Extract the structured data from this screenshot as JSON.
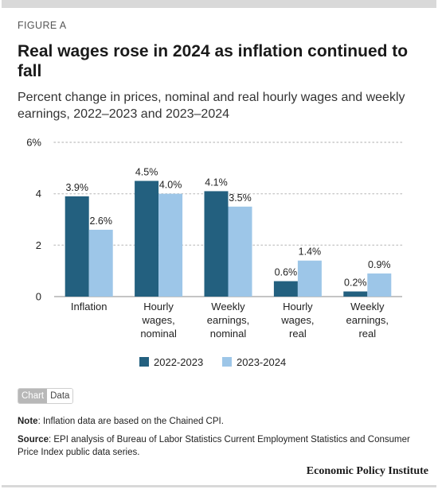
{
  "figure_label": "FIGURE A",
  "title": "Real wages rose in 2024 as inflation continued to fall",
  "subtitle": "Percent change in prices, nominal and real hourly wages and weekly earnings, 2022–2023 and 2023–2024",
  "toggle": {
    "chart_label": "Chart",
    "data_label": "Data",
    "active": "Chart"
  },
  "note_label": "Note",
  "note_text": ": Inflation data are based on the Chained CPI.",
  "source_label": "Source",
  "source_text": ": EPI analysis of Bureau of Labor Statistics Current Employment Statistics and Consumer Price Index public data series.",
  "brand": "Economic Policy Institute",
  "chart_data": {
    "type": "bar",
    "categories": [
      [
        "Inflation"
      ],
      [
        "Hourly",
        "wages,",
        "nominal"
      ],
      [
        "Weekly",
        "earnings,",
        "nominal"
      ],
      [
        "Hourly",
        "wages,",
        "real"
      ],
      [
        "Weekly",
        "earnings,",
        "real"
      ]
    ],
    "series": [
      {
        "name": "2022-2023",
        "color": "#23607f",
        "values": [
          3.9,
          4.5,
          4.1,
          0.6,
          0.2
        ],
        "labels": [
          "3.9%",
          "4.5%",
          "4.1%",
          "0.6%",
          "0.2%"
        ]
      },
      {
        "name": "2023-2024",
        "color": "#9dc6e8",
        "values": [
          2.6,
          4.0,
          3.5,
          1.4,
          0.9
        ],
        "labels": [
          "2.6%",
          "4.0%",
          "3.5%",
          "1.4%",
          "0.9%"
        ]
      }
    ],
    "ylim": [
      0,
      6
    ],
    "yticks": [
      {
        "value": 0,
        "label": "0"
      },
      {
        "value": 2,
        "label": "2"
      },
      {
        "value": 4,
        "label": "4"
      },
      {
        "value": 6,
        "label": "6%"
      }
    ],
    "grid": true,
    "legend": "bottom-center"
  }
}
